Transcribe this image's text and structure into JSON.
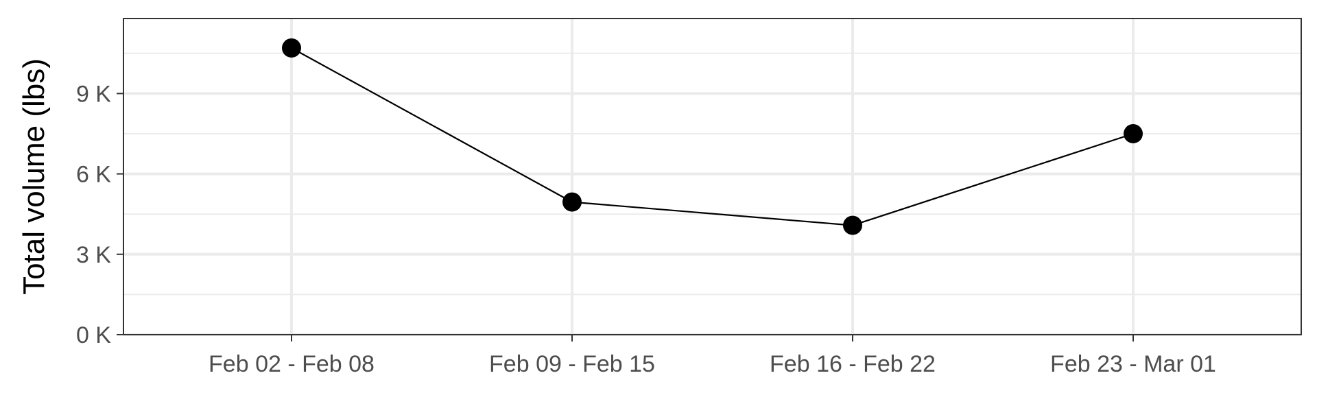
{
  "chart_data": {
    "type": "line",
    "title": "",
    "xlabel": "",
    "ylabel": "Total volume (lbs)",
    "categories": [
      "Feb 02 - Feb 08",
      "Feb 09 - Feb 15",
      "Feb 16 - Feb 22",
      "Feb 23 - Mar 01"
    ],
    "series": [
      {
        "values": [
          10700,
          4950,
          4080,
          7500
        ]
      }
    ],
    "ylim": [
      0,
      11800
    ],
    "yticks": [
      0,
      3000,
      6000,
      9000
    ],
    "ytick_labels": [
      "0 K",
      "3 K",
      "6 K",
      "9 K"
    ],
    "grid": true,
    "legend": "none",
    "colors": {
      "line": "#000000",
      "point": "#000000",
      "grid": "#ebebeb",
      "panel_border": "#333333",
      "tick_label": "#4d4d4d"
    }
  }
}
